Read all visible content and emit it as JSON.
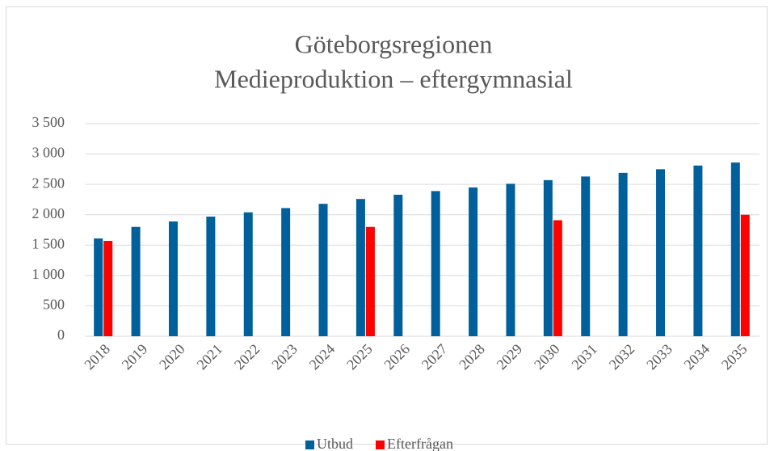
{
  "chart_data": {
    "type": "bar",
    "title": [
      "Göteborgsregionen",
      "Medieproduktion – eftergymnasial"
    ],
    "categories": [
      "2018",
      "2019",
      "2020",
      "2021",
      "2022",
      "2023",
      "2024",
      "2025",
      "2026",
      "2027",
      "2028",
      "2029",
      "2030",
      "2031",
      "2032",
      "2033",
      "2034",
      "2035"
    ],
    "series": [
      {
        "name": "Utbud",
        "color": "#00609c",
        "values": [
          1610,
          1800,
          1890,
          1970,
          2040,
          2110,
          2180,
          2260,
          2330,
          2390,
          2450,
          2510,
          2570,
          2630,
          2690,
          2750,
          2810,
          2860
        ]
      },
      {
        "name": "Efterfrågan",
        "color": "#ff0000",
        "values": [
          1570,
          null,
          null,
          null,
          null,
          null,
          null,
          1800,
          null,
          null,
          null,
          null,
          1910,
          null,
          null,
          null,
          null,
          2000
        ]
      }
    ],
    "ylim": [
      0,
      3500
    ],
    "yticks": [
      0,
      500,
      {
        "value": 1000,
        "label": "1 000"
      },
      {
        "value": 1500,
        "label": "1 500"
      },
      {
        "value": 2000,
        "label": "2 000"
      },
      {
        "value": 2500,
        "label": "2 500"
      },
      {
        "value": 3000,
        "label": "3 000"
      },
      {
        "value": 3500,
        "label": "3 500"
      }
    ],
    "grid": true,
    "legend": "bottom"
  }
}
